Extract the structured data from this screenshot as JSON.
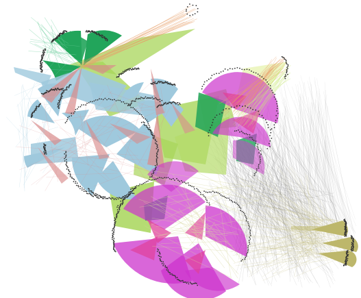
{
  "graph": {
    "type": "network-visualization",
    "background_color": "#ffffff",
    "node_color": "#333333",
    "clusters": [
      {
        "name": "green",
        "color": "#22a55b"
      },
      {
        "name": "light-blue",
        "color": "#9fc9dd"
      },
      {
        "name": "salmon",
        "color": "#d98c8c"
      },
      {
        "name": "lime",
        "color": "#a8d65a"
      },
      {
        "name": "magenta",
        "color": "#cc33cc"
      },
      {
        "name": "pink",
        "color": "#e0409a"
      },
      {
        "name": "olive",
        "color": "#bdb76b"
      },
      {
        "name": "orange",
        "color": "#e8a06a"
      }
    ],
    "edge_colors": {
      "gray": "#555555",
      "olive_faint": "#c8c48a",
      "salmon": "#d98c8c",
      "light_blue": "#9fc9dd",
      "orange": "#e8a06a",
      "lime": "#c9e87a"
    }
  }
}
